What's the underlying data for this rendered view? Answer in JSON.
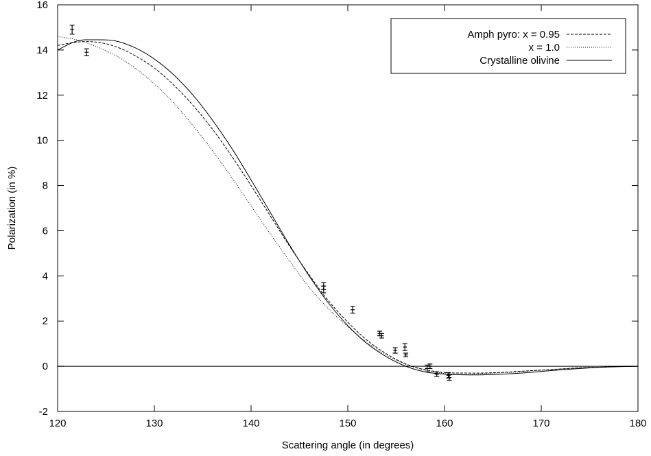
{
  "chart_data": {
    "type": "line",
    "title": "",
    "xlabel": "Scattering  angle (in degrees)",
    "ylabel": "Polarization (in %)",
    "xlim": [
      120,
      180
    ],
    "ylim": [
      -2,
      16
    ],
    "xticks": [
      120,
      130,
      140,
      150,
      160,
      170,
      180
    ],
    "yticks": [
      -2,
      0,
      2,
      4,
      6,
      8,
      10,
      12,
      14,
      16
    ],
    "zero_line": true,
    "grid": false,
    "legend_position": "top-right",
    "legend": {
      "line1_label": "Amph pyro:  x = 0.95",
      "line2_label": "x = 1.0",
      "line3_label": "Crystalline olivine"
    },
    "series": [
      {
        "name": "Amph pyro:  x = 0.95",
        "style": "dashed",
        "x": [
          120,
          122,
          124,
          126,
          128,
          130,
          132,
          134,
          136,
          138,
          140,
          142,
          144,
          146,
          148,
          150,
          152,
          154,
          156,
          158,
          160,
          162,
          164,
          166,
          168,
          170,
          172,
          174,
          176,
          178,
          180
        ],
        "y": [
          14.2,
          14.35,
          14.35,
          14.15,
          13.75,
          13.2,
          12.45,
          11.55,
          10.5,
          9.3,
          8.0,
          6.65,
          5.3,
          4.05,
          2.9,
          1.95,
          1.15,
          0.55,
          0.1,
          -0.15,
          -0.28,
          -0.3,
          -0.3,
          -0.27,
          -0.22,
          -0.17,
          -0.12,
          -0.07,
          -0.04,
          -0.01,
          0
        ]
      },
      {
        "name": "x = 1.0",
        "style": "dotted",
        "x": [
          120,
          122,
          124,
          126,
          128,
          130,
          132,
          134,
          136,
          138,
          140,
          142,
          144,
          146,
          148,
          150,
          152,
          154,
          156,
          158,
          160,
          162,
          164,
          166,
          168,
          170,
          172,
          174,
          176,
          178,
          180
        ],
        "y": [
          14.6,
          14.45,
          14.15,
          13.75,
          13.2,
          12.5,
          11.65,
          10.65,
          9.55,
          8.35,
          7.1,
          5.85,
          4.65,
          3.5,
          2.55,
          1.75,
          1.05,
          0.5,
          0.08,
          -0.18,
          -0.32,
          -0.35,
          -0.33,
          -0.29,
          -0.24,
          -0.18,
          -0.12,
          -0.07,
          -0.04,
          -0.01,
          0
        ]
      },
      {
        "name": "Crystalline olivine",
        "style": "solid",
        "x": [
          120,
          122,
          124,
          126,
          128,
          130,
          132,
          134,
          136,
          138,
          140,
          142,
          144,
          146,
          148,
          150,
          152,
          154,
          156,
          158,
          160,
          162,
          164,
          166,
          168,
          170,
          172,
          174,
          176,
          178,
          180
        ],
        "y": [
          14.0,
          14.4,
          14.45,
          14.4,
          14.1,
          13.6,
          12.9,
          12.0,
          10.9,
          9.65,
          8.25,
          6.8,
          5.35,
          4.0,
          2.8,
          1.8,
          1.0,
          0.42,
          0.0,
          -0.25,
          -0.35,
          -0.38,
          -0.38,
          -0.35,
          -0.3,
          -0.23,
          -0.16,
          -0.1,
          -0.05,
          -0.02,
          0
        ]
      }
    ],
    "observations": {
      "x": [
        121.5,
        123.0,
        147.5,
        147.5,
        150.5,
        153.3,
        153.5,
        154.9,
        155.9,
        156.0,
        158.2,
        158.5,
        159.2,
        160.4,
        160.5
      ],
      "y": [
        14.9,
        13.9,
        3.55,
        3.4,
        2.5,
        1.45,
        1.35,
        0.7,
        0.85,
        0.5,
        -0.1,
        0.0,
        -0.35,
        -0.4,
        -0.5
      ],
      "err": [
        0.2,
        0.15,
        0.15,
        0.15,
        0.15,
        0.1,
        0.1,
        0.12,
        0.15,
        0.08,
        0.15,
        0.1,
        0.1,
        0.12,
        0.12
      ]
    }
  }
}
